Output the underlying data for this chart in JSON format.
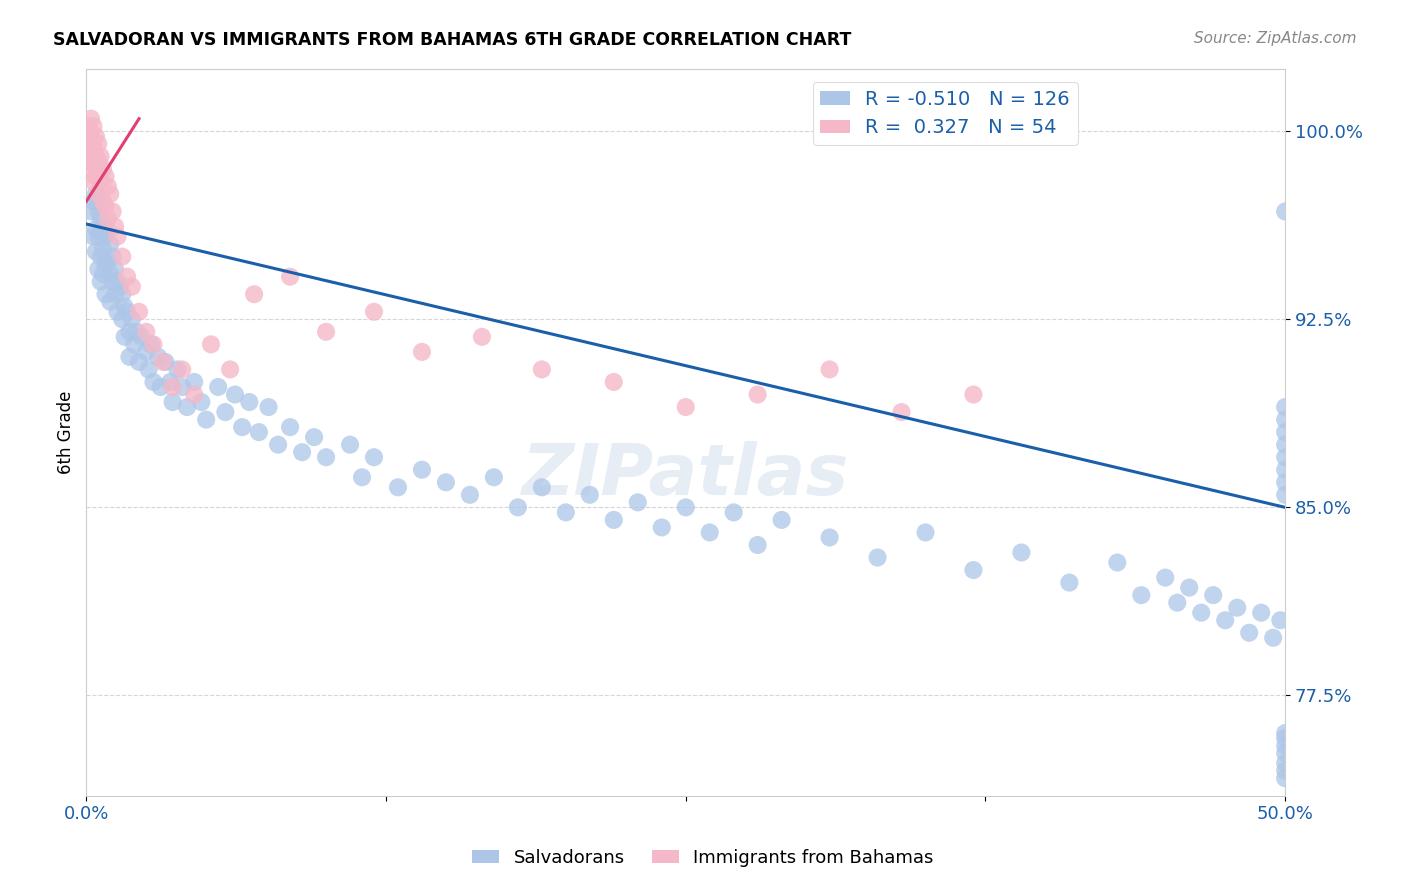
{
  "title": "SALVADORAN VS IMMIGRANTS FROM BAHAMAS 6TH GRADE CORRELATION CHART",
  "source": "Source: ZipAtlas.com",
  "xlabel_blue": "Salvadorans",
  "xlabel_pink": "Immigrants from Bahamas",
  "ylabel": "6th Grade",
  "watermark": "ZIPatlas",
  "blue_R": -0.51,
  "blue_N": 126,
  "pink_R": 0.327,
  "pink_N": 54,
  "xlim": [
    0.0,
    0.5
  ],
  "ylim": [
    0.735,
    1.025
  ],
  "yticks": [
    0.775,
    0.85,
    0.925,
    1.0
  ],
  "ytick_labels": [
    "77.5%",
    "85.0%",
    "92.5%",
    "100.0%"
  ],
  "xticks": [
    0.0,
    0.125,
    0.25,
    0.375,
    0.5
  ],
  "xtick_labels": [
    "0.0%",
    "",
    "",
    "",
    "50.0%"
  ],
  "blue_color": "#adc6e8",
  "blue_line_color": "#1a5faa",
  "pink_color": "#f4b8c8",
  "pink_line_color": "#e04070",
  "legend_R_color": "#1a5fa8",
  "tick_color": "#1a5fa8",
  "grid_color": "#cccccc",
  "blue_x": [
    0.002,
    0.003,
    0.003,
    0.004,
    0.004,
    0.004,
    0.005,
    0.005,
    0.005,
    0.005,
    0.006,
    0.006,
    0.006,
    0.006,
    0.007,
    0.007,
    0.007,
    0.008,
    0.008,
    0.008,
    0.009,
    0.009,
    0.01,
    0.01,
    0.01,
    0.011,
    0.011,
    0.012,
    0.012,
    0.013,
    0.013,
    0.014,
    0.015,
    0.015,
    0.016,
    0.016,
    0.017,
    0.018,
    0.018,
    0.019,
    0.02,
    0.021,
    0.022,
    0.023,
    0.025,
    0.026,
    0.027,
    0.028,
    0.03,
    0.031,
    0.033,
    0.035,
    0.036,
    0.038,
    0.04,
    0.042,
    0.045,
    0.048,
    0.05,
    0.055,
    0.058,
    0.062,
    0.065,
    0.068,
    0.072,
    0.076,
    0.08,
    0.085,
    0.09,
    0.095,
    0.1,
    0.11,
    0.115,
    0.12,
    0.13,
    0.14,
    0.15,
    0.16,
    0.17,
    0.18,
    0.19,
    0.2,
    0.21,
    0.22,
    0.23,
    0.24,
    0.25,
    0.26,
    0.27,
    0.28,
    0.29,
    0.31,
    0.33,
    0.35,
    0.37,
    0.39,
    0.41,
    0.43,
    0.44,
    0.45,
    0.455,
    0.46,
    0.465,
    0.47,
    0.475,
    0.48,
    0.485,
    0.49,
    0.495,
    0.498,
    0.5,
    0.5,
    0.5,
    0.5,
    0.5,
    0.5,
    0.5,
    0.5,
    0.5,
    0.5,
    0.5,
    0.5,
    0.5,
    0.5,
    0.5,
    0.5
  ],
  "blue_y": [
    0.968,
    0.972,
    0.958,
    0.975,
    0.961,
    0.952,
    0.968,
    0.958,
    0.945,
    0.972,
    0.96,
    0.95,
    0.965,
    0.94,
    0.962,
    0.953,
    0.943,
    0.958,
    0.947,
    0.935,
    0.96,
    0.948,
    0.955,
    0.943,
    0.932,
    0.95,
    0.94,
    0.945,
    0.935,
    0.94,
    0.928,
    0.938,
    0.935,
    0.925,
    0.93,
    0.918,
    0.928,
    0.92,
    0.91,
    0.925,
    0.915,
    0.92,
    0.908,
    0.918,
    0.912,
    0.905,
    0.915,
    0.9,
    0.91,
    0.898,
    0.908,
    0.9,
    0.892,
    0.905,
    0.898,
    0.89,
    0.9,
    0.892,
    0.885,
    0.898,
    0.888,
    0.895,
    0.882,
    0.892,
    0.88,
    0.89,
    0.875,
    0.882,
    0.872,
    0.878,
    0.87,
    0.875,
    0.862,
    0.87,
    0.858,
    0.865,
    0.86,
    0.855,
    0.862,
    0.85,
    0.858,
    0.848,
    0.855,
    0.845,
    0.852,
    0.842,
    0.85,
    0.84,
    0.848,
    0.835,
    0.845,
    0.838,
    0.83,
    0.84,
    0.825,
    0.832,
    0.82,
    0.828,
    0.815,
    0.822,
    0.812,
    0.818,
    0.808,
    0.815,
    0.805,
    0.81,
    0.8,
    0.808,
    0.798,
    0.805,
    0.968,
    0.855,
    0.745,
    0.885,
    0.76,
    0.87,
    0.752,
    0.89,
    0.742,
    0.88,
    0.755,
    0.865,
    0.748,
    0.875,
    0.758,
    0.86
  ],
  "pink_x": [
    0.001,
    0.001,
    0.001,
    0.002,
    0.002,
    0.002,
    0.002,
    0.003,
    0.003,
    0.003,
    0.003,
    0.004,
    0.004,
    0.004,
    0.005,
    0.005,
    0.005,
    0.006,
    0.006,
    0.007,
    0.007,
    0.008,
    0.008,
    0.009,
    0.009,
    0.01,
    0.011,
    0.012,
    0.013,
    0.015,
    0.017,
    0.019,
    0.022,
    0.025,
    0.028,
    0.032,
    0.036,
    0.04,
    0.045,
    0.052,
    0.06,
    0.07,
    0.085,
    0.1,
    0.12,
    0.14,
    0.165,
    0.19,
    0.22,
    0.25,
    0.28,
    0.31,
    0.34,
    0.37
  ],
  "pink_y": [
    1.002,
    0.995,
    0.988,
    1.005,
    0.998,
    0.99,
    0.983,
    1.002,
    0.995,
    0.988,
    0.98,
    0.998,
    0.99,
    0.982,
    0.995,
    0.988,
    0.975,
    0.99,
    0.98,
    0.985,
    0.972,
    0.982,
    0.97,
    0.978,
    0.965,
    0.975,
    0.968,
    0.962,
    0.958,
    0.95,
    0.942,
    0.938,
    0.928,
    0.92,
    0.915,
    0.908,
    0.898,
    0.905,
    0.895,
    0.915,
    0.905,
    0.935,
    0.942,
    0.92,
    0.928,
    0.912,
    0.918,
    0.905,
    0.9,
    0.89,
    0.895,
    0.905,
    0.888,
    0.895
  ]
}
